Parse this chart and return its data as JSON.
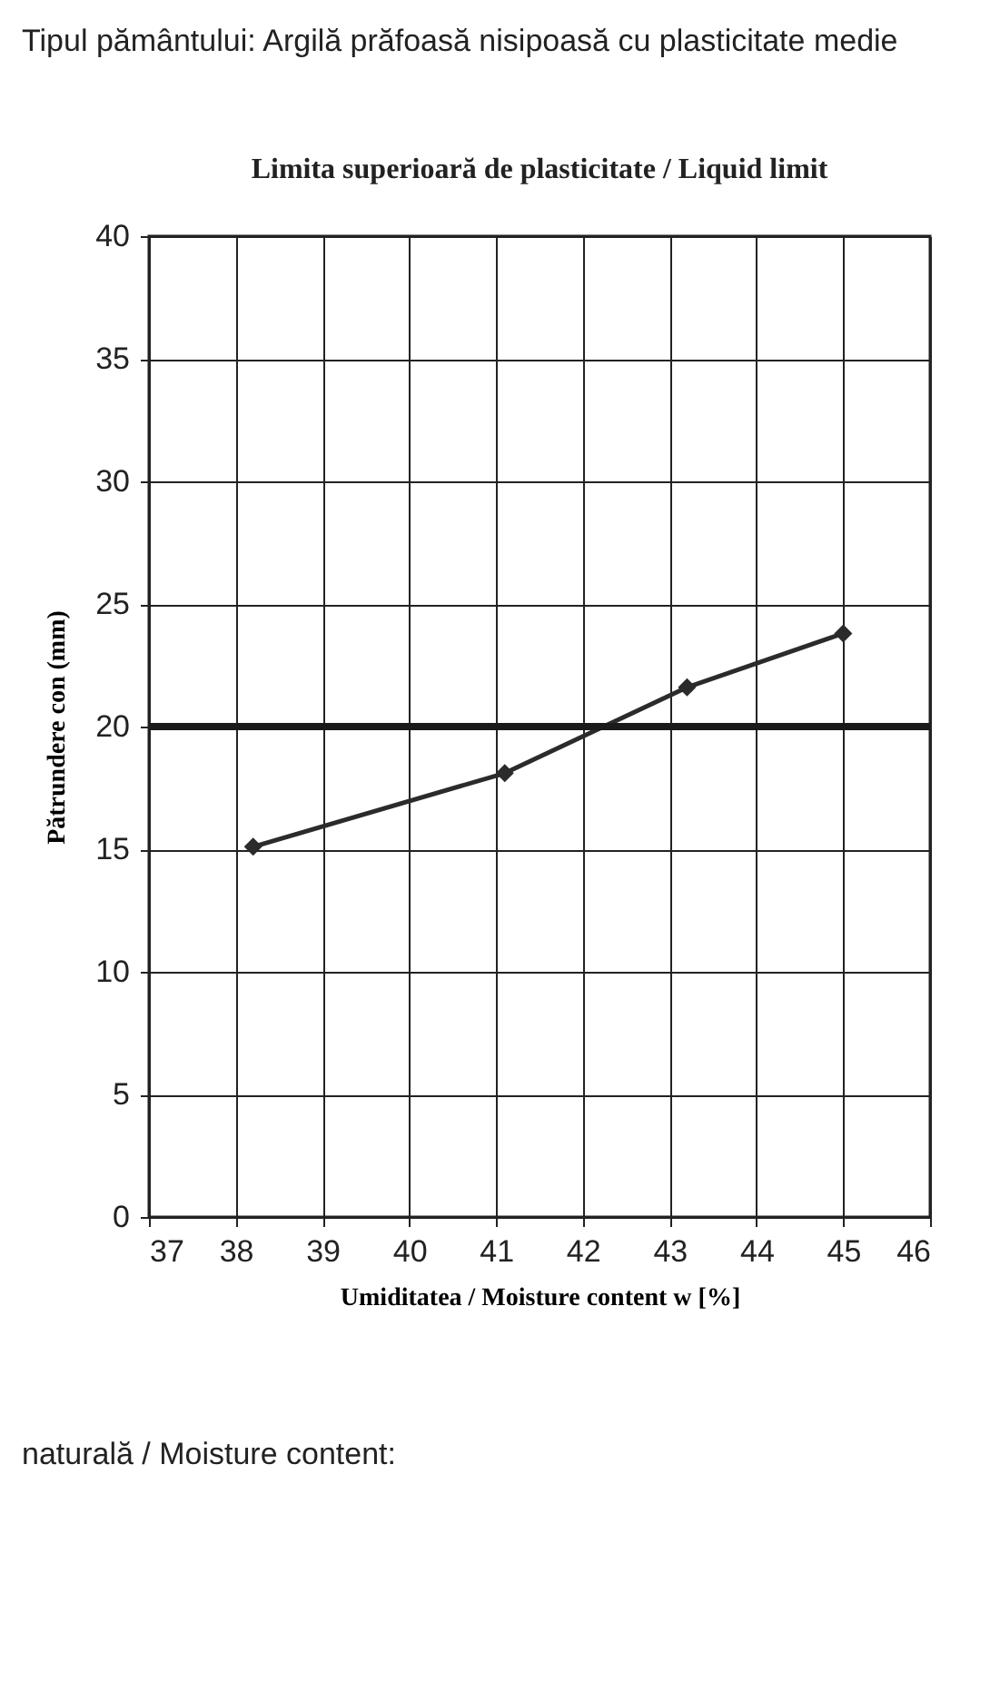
{
  "chart_data": {
    "type": "line",
    "title": "Limita superioară de plasticitate / Liquid limit",
    "xlabel": "Umiditatea / Moisture content  w [%]",
    "ylabel": "Pătrundere con (mm)",
    "x": [
      38.2,
      41.1,
      43.2,
      45.0
    ],
    "series": [
      {
        "color": "#2b2b2b",
        "values": [
          15.1,
          18.1,
          21.6,
          23.8
        ]
      }
    ],
    "xlim": [
      37,
      46
    ],
    "xticks": [
      37,
      38,
      39,
      40,
      41,
      42,
      43,
      44,
      45,
      46
    ],
    "ylim": [
      0,
      40
    ],
    "yticks": [
      0,
      5,
      10,
      15,
      20,
      25,
      30,
      35,
      40
    ],
    "grid": true,
    "marker": "diamond",
    "line_style": "solid",
    "ref_lines": [
      {
        "axis": "y",
        "value": 20,
        "color": "#1a1a1a"
      }
    ],
    "annotations": [
      "Tipul pământului: Argilă prăfoasă nisipoasă cu plasticitate medie",
      "naturală / Moisture content:"
    ]
  }
}
